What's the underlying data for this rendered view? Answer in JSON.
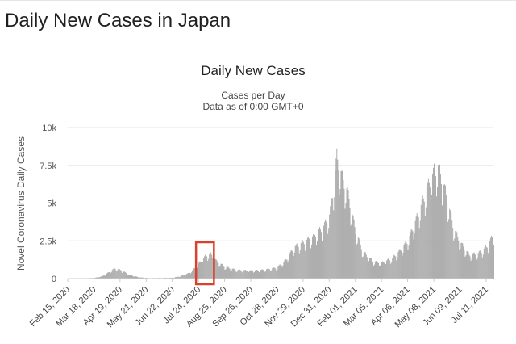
{
  "page": {
    "title": "Daily New Cases in Japan"
  },
  "chart_data": {
    "type": "bar",
    "title": "Daily New Cases",
    "subtitle": [
      "Cases per Day",
      "Data as of 0:00 GMT+0"
    ],
    "ylabel": "Novel Coronavirus Daily Cases",
    "ylim": [
      0,
      10000
    ],
    "yticks": [
      {
        "value": 0,
        "label": "0"
      },
      {
        "value": 2500,
        "label": "2.5k"
      },
      {
        "value": 5000,
        "label": "5k"
      },
      {
        "value": 7500,
        "label": "7.5k"
      },
      {
        "value": 10000,
        "label": "10k"
      }
    ],
    "xticks": [
      "Feb 15, 2020",
      "Mar 18, 2020",
      "Apr 19, 2020",
      "May 21, 2020",
      "Jun 22, 2020",
      "Jul 24, 2020",
      "Aug 25, 2020",
      "Sep 26, 2020",
      "Oct 28, 2020",
      "Nov 29, 2020",
      "Dec 31, 2020",
      "Feb 01, 2021",
      "Mar 05, 2021",
      "Apr 06, 2021",
      "May 08, 2021",
      "Jun 09, 2021",
      "Jul 11, 2021"
    ],
    "x_start": "Feb 15, 2020",
    "x_end": "Jul 20, 2021",
    "bar_color": "#9e9e9e",
    "highlight_color": "#d9412b",
    "highlight_range": [
      "Jul 24, 2020",
      "Aug 08, 2020"
    ],
    "series_points": [
      [
        "Feb 15, 2020",
        5
      ],
      [
        "Mar 18, 2020",
        40
      ],
      [
        "Mar 28, 2020",
        150
      ],
      [
        "Apr 08, 2020",
        500
      ],
      [
        "Apr 12, 2020",
        650
      ],
      [
        "Apr 19, 2020",
        550
      ],
      [
        "Apr 30, 2020",
        250
      ],
      [
        "May 12, 2020",
        80
      ],
      [
        "May 25, 2020",
        30
      ],
      [
        "Jun 22, 2020",
        50
      ],
      [
        "Jul 01, 2020",
        150
      ],
      [
        "Jul 12, 2020",
        350
      ],
      [
        "Jul 20, 2020",
        700
      ],
      [
        "Jul 28, 2020",
        1200
      ],
      [
        "Aug 03, 2020",
        1500
      ],
      [
        "Aug 08, 2020",
        1550
      ],
      [
        "Aug 15, 2020",
        1100
      ],
      [
        "Aug 25, 2020",
        750
      ],
      [
        "Sep 08, 2020",
        550
      ],
      [
        "Sep 26, 2020",
        500
      ],
      [
        "Oct 10, 2020",
        550
      ],
      [
        "Oct 28, 2020",
        700
      ],
      [
        "Nov 08, 2020",
        1200
      ],
      [
        "Nov 18, 2020",
        2000
      ],
      [
        "Nov 29, 2020",
        2300
      ],
      [
        "Dec 12, 2020",
        2700
      ],
      [
        "Dec 24, 2020",
        3300
      ],
      [
        "Dec 31, 2020",
        4000
      ],
      [
        "Jan 05, 2021",
        5800
      ],
      [
        "Jan 09, 2021",
        7700
      ],
      [
        "Jan 15, 2021",
        6500
      ],
      [
        "Jan 22, 2021",
        5500
      ],
      [
        "Feb 01, 2021",
        3000
      ],
      [
        "Feb 10, 2021",
        1700
      ],
      [
        "Feb 22, 2021",
        1100
      ],
      [
        "Mar 05, 2021",
        1000
      ],
      [
        "Mar 18, 2021",
        1300
      ],
      [
        "Mar 28, 2021",
        1800
      ],
      [
        "Apr 06, 2021",
        2400
      ],
      [
        "Apr 18, 2021",
        4000
      ],
      [
        "Apr 28, 2021",
        5500
      ],
      [
        "May 08, 2021",
        6800
      ],
      [
        "May 13, 2021",
        7100
      ],
      [
        "May 22, 2021",
        5500
      ],
      [
        "Jun 01, 2021",
        3200
      ],
      [
        "Jun 09, 2021",
        2300
      ],
      [
        "Jun 20, 2021",
        1500
      ],
      [
        "Jul 01, 2021",
        1600
      ],
      [
        "Jul 11, 2021",
        2000
      ],
      [
        "Jul 20, 2021",
        2800
      ]
    ]
  }
}
